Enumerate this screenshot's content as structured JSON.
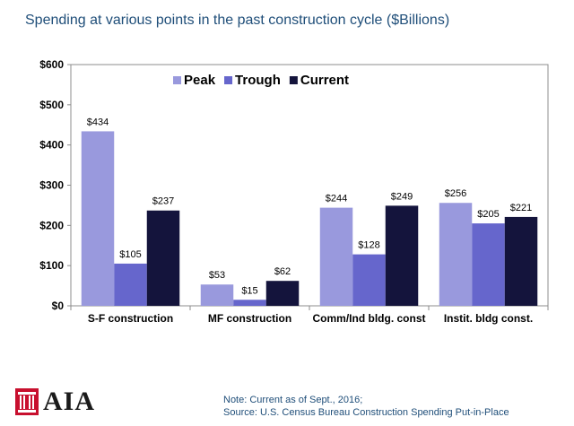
{
  "title": "Spending at various points in the past construction cycle ($Billions)",
  "chart_data": {
    "type": "bar",
    "categories": [
      "S-F construction",
      "MF construction",
      "Comm/Ind bldg. const",
      "Instit. bldg const."
    ],
    "series": [
      {
        "name": "Peak",
        "values": [
          434,
          53,
          244,
          256
        ],
        "labels": [
          "$434",
          "$53",
          "$244",
          "$256"
        ],
        "color": "#9999dd"
      },
      {
        "name": "Trough",
        "values": [
          105,
          15,
          128,
          205
        ],
        "labels": [
          "$105",
          "$15",
          "$128",
          "$205"
        ],
        "color": "#6666cc"
      },
      {
        "name": "Current",
        "values": [
          237,
          62,
          249,
          221
        ],
        "labels": [
          "$237",
          "$62",
          "$249",
          "$221"
        ],
        "color": "#14143c"
      }
    ],
    "yticks": [
      0,
      100,
      200,
      300,
      400,
      500,
      600
    ],
    "ytick_labels": [
      "$0",
      "$100",
      "$200",
      "$300",
      "$400",
      "$500",
      "$600"
    ],
    "ylim": [
      0,
      600
    ],
    "grid": false,
    "legend_position": "top-center"
  },
  "logo": {
    "text": "AIA"
  },
  "note": {
    "line1": "Note: Current as of Sept., 2016;",
    "line2": "Source: U.S. Census Bureau Construction Spending Put-in-Place"
  }
}
